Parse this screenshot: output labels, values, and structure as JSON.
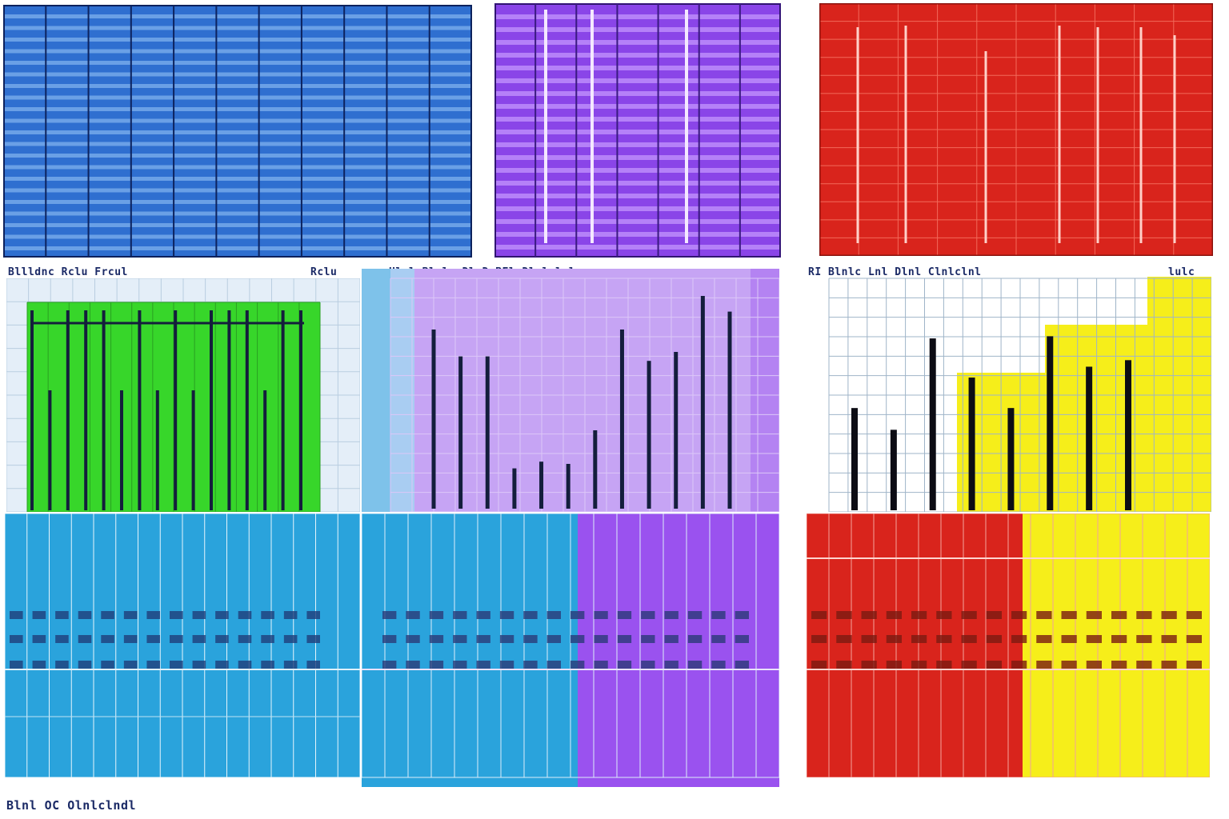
{
  "colors": {
    "blue": "#2f6fd0",
    "purple": "#8a45e8",
    "red": "#d9241c",
    "green": "#37d62a",
    "lavender": "#c6a4f4",
    "white": "#f2f6fb",
    "cyan": "#2aa3dc",
    "violet": "#9a52ef",
    "yellow": "#f6ee1a",
    "bar": "#141e3c"
  },
  "headers": {
    "middle_left": "Bllldnc  Rclu  Frcul",
    "middle_left_right": "Rclu",
    "middle_center": "Hlcl  Blcls  DlcD  BFl  Dlulmlnlc",
    "middle_right": "RI  Blnlc  Lnl  Dlnl  Clnlclnl",
    "middle_right_right": "lulc"
  },
  "footer": "Blnl  OC  Olnlclndl",
  "chart_data": [
    {
      "type": "bar",
      "ylim": [
        0,
        100
      ],
      "values": [
        100,
        60,
        100,
        100,
        100,
        60,
        100,
        60,
        100,
        60,
        100,
        100,
        100,
        60,
        100,
        100
      ]
    },
    {
      "type": "bar",
      "ylim": [
        0,
        100
      ],
      "values": [
        80,
        68,
        68,
        18,
        21,
        20,
        35,
        80,
        66,
        70,
        95,
        88
      ]
    },
    {
      "type": "bar",
      "ylim": [
        0,
        100
      ],
      "values": [
        47,
        37,
        79,
        61,
        47,
        80,
        66,
        69
      ]
    }
  ]
}
